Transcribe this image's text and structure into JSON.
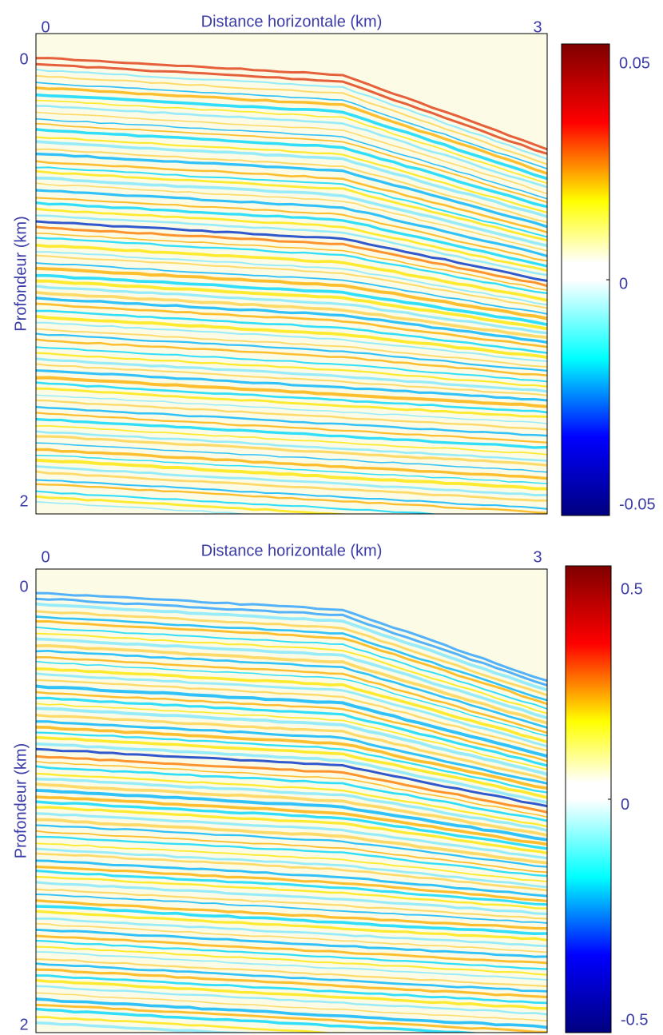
{
  "chart_data": [
    {
      "type": "heatmap",
      "title": "Distance horizontale (km)",
      "y_label": "Profondeur (km)",
      "xlim": [
        0,
        3
      ],
      "xticks": [
        0,
        3
      ],
      "ylim": [
        0,
        2
      ],
      "yticks": [
        0,
        2
      ],
      "clim": [
        -0.05,
        0.05
      ],
      "cticks": [
        -0.05,
        0,
        0.05
      ],
      "colormap": [
        "#00007f",
        "#0000ff",
        "#00ffff",
        "#ffffff",
        "#ffff00",
        "#ff0000",
        "#7f0000"
      ]
    },
    {
      "type": "heatmap",
      "title": "Distance horizontale (km)",
      "y_label": "Profondeur (km)",
      "xlim": [
        0,
        3
      ],
      "xticks": [
        0,
        3
      ],
      "ylim": [
        0,
        2
      ],
      "yticks": [
        0,
        2
      ],
      "clim": [
        -0.5,
        0.5
      ],
      "cticks": [
        -0.5,
        0,
        0.5
      ],
      "colormap": [
        "#00007f",
        "#0000ff",
        "#00ffff",
        "#ffffff",
        "#ffff00",
        "#ff0000",
        "#7f0000"
      ]
    }
  ]
}
